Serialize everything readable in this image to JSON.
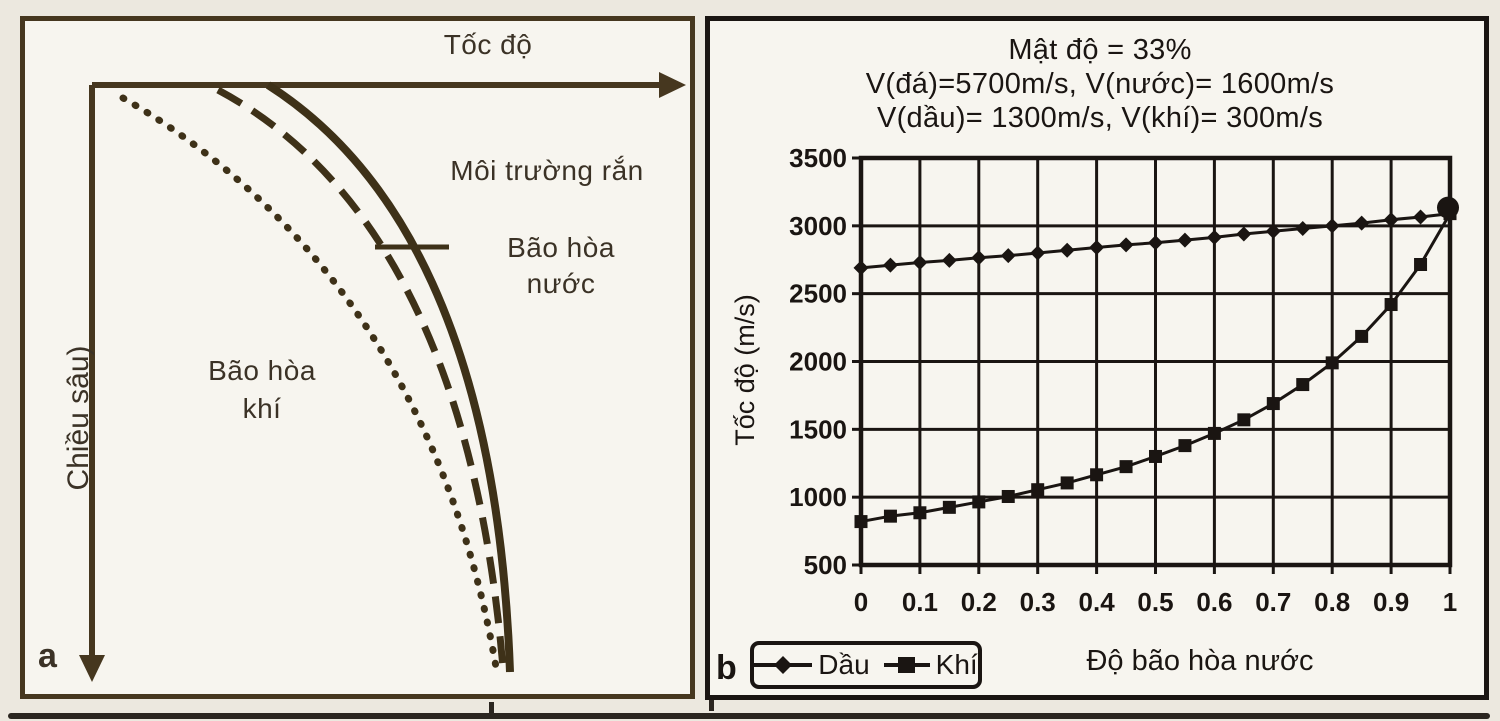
{
  "figure": {
    "panel_a": {
      "label": "a",
      "x_axis_title": "Tốc độ",
      "y_axis_title": "Chiều sâu)",
      "annotations": {
        "solid_medium": "Môi trường rắn",
        "water_saturated_line1": "Bão hòa",
        "water_saturated_line2": "nước",
        "gas_saturated_line1": "Bão hòa",
        "gas_saturated_line2": "khí"
      }
    },
    "panel_b": {
      "label": "b"
    }
  },
  "chart_data": {
    "type": "line",
    "title_lines": [
      "Mật độ = 33%",
      "V(đá)=5700m/s, V(nước)= 1600m/s",
      "V(dầu)= 1300m/s, V(khí)= 300m/s"
    ],
    "xlabel": "Độ bão hòa nước",
    "ylabel": "Tốc độ (m/s)",
    "x": [
      0,
      0.05,
      0.1,
      0.15,
      0.2,
      0.25,
      0.3,
      0.35,
      0.4,
      0.45,
      0.5,
      0.55,
      0.6,
      0.65,
      0.7,
      0.75,
      0.8,
      0.85,
      0.9,
      0.95,
      1
    ],
    "series": [
      {
        "name": "Dầu",
        "marker": "diamond",
        "values": [
          2690,
          2710,
          2730,
          2745,
          2765,
          2780,
          2800,
          2820,
          2840,
          2860,
          2875,
          2895,
          2915,
          2940,
          2960,
          2980,
          3000,
          3020,
          3045,
          3065,
          3090
        ]
      },
      {
        "name": "Khí",
        "marker": "square",
        "values": [
          820,
          860,
          885,
          925,
          965,
          1005,
          1055,
          1105,
          1165,
          1225,
          1300,
          1380,
          1470,
          1570,
          1690,
          1830,
          1990,
          2185,
          2420,
          2715,
          3090
        ]
      }
    ],
    "x_tick_labels": [
      "0",
      "0.1",
      "0.2",
      "0.3",
      "0.4",
      "0.5",
      "0.6",
      "0.7",
      "0.8",
      "0.9",
      "1"
    ],
    "y_tick_labels": [
      "3500",
      "3000",
      "2500",
      "2000",
      "1500",
      "1000",
      "500"
    ],
    "xlim": [
      0,
      1
    ],
    "ylim": [
      500,
      3500
    ],
    "grid": true,
    "legend_position": "bottom-left",
    "convergence_point": {
      "x": 1,
      "value": 3090
    }
  },
  "colors": {
    "page_bg": "#ece8df",
    "panel_bg": "#f7f5ef",
    "panel_a_ink": "#46371f",
    "panel_b_ink": "#1a1512",
    "caption_strip": "#2b2620"
  }
}
